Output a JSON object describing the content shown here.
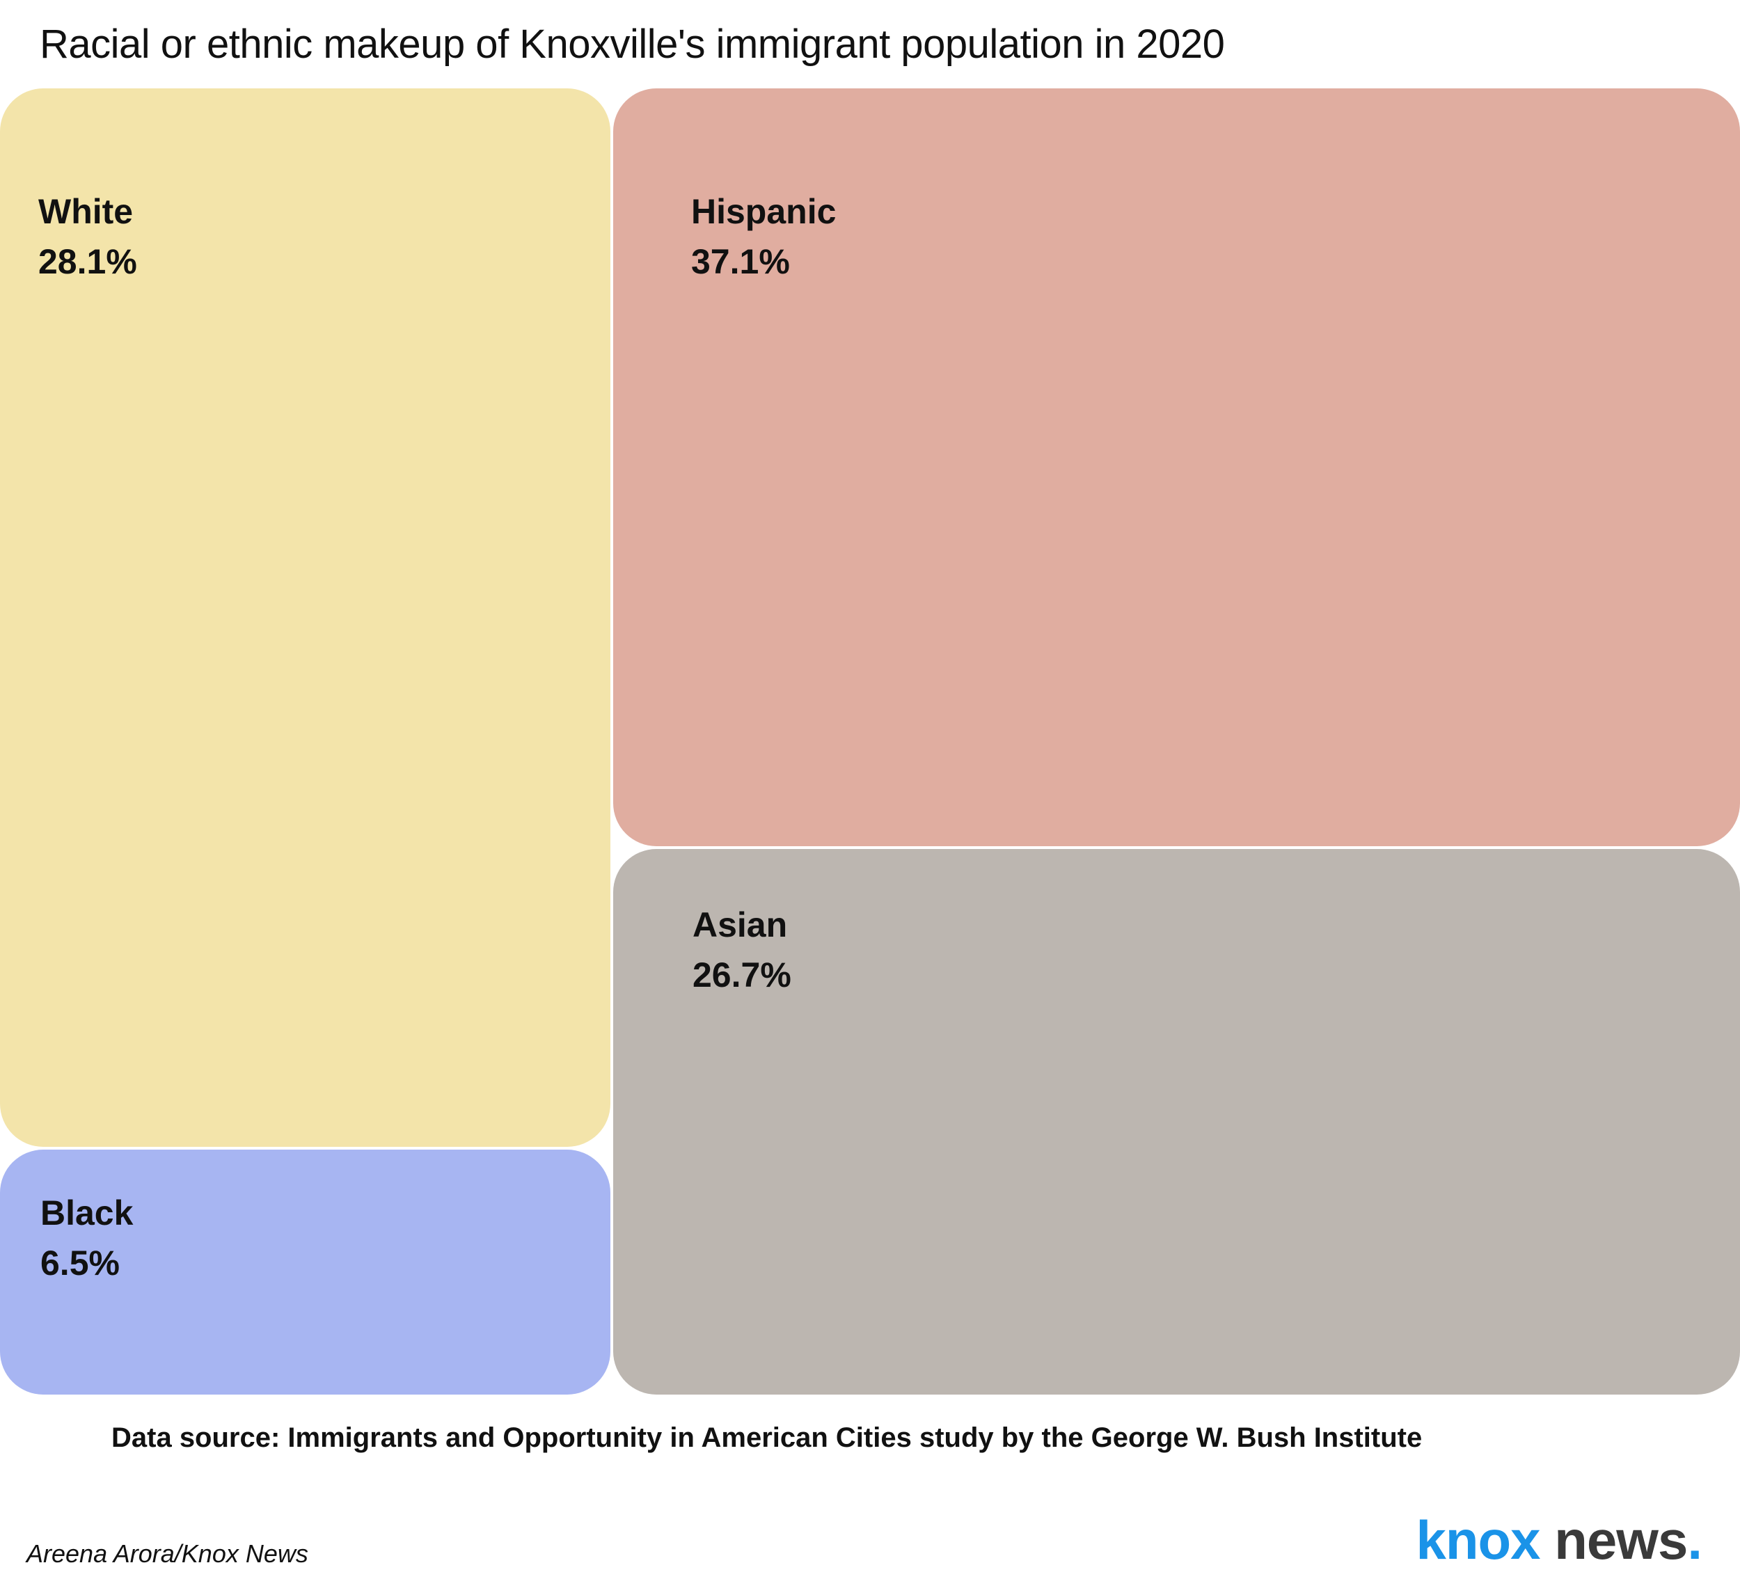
{
  "title": "Racial or ethnic makeup of Knoxville's immigrant population in 2020",
  "chart_data": {
    "type": "treemap",
    "title": "Racial or ethnic makeup of Knoxville's immigrant population in 2020",
    "unit": "%",
    "series": [
      {
        "name": "Hispanic",
        "value": 37.1,
        "display": "37.1%",
        "color": "#e0ada0"
      },
      {
        "name": "White",
        "value": 28.1,
        "display": "28.1%",
        "color": "#f3e4aa"
      },
      {
        "name": "Asian",
        "value": 26.7,
        "display": "26.7%",
        "color": "#bcb6b0"
      },
      {
        "name": "Black",
        "value": 6.5,
        "display": "6.5%",
        "color": "#a7b5f2"
      }
    ]
  },
  "source": "Data source: Immigrants and Opportunity in American Cities study by the George W. Bush Institute",
  "credit": "Areena Arora/Knox News",
  "logo": {
    "part1": "knox",
    "part2": " news",
    "dot": "."
  }
}
